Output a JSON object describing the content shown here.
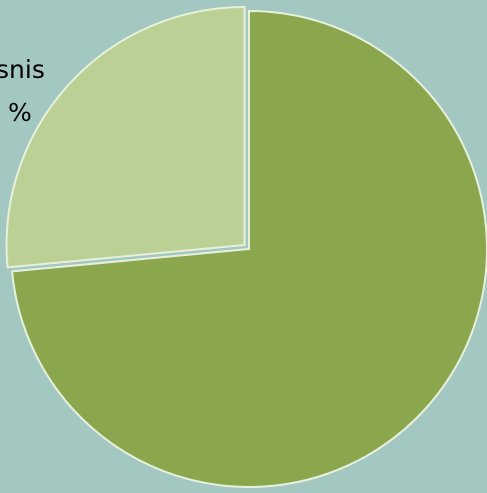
{
  "chart_data": {
    "type": "pie",
    "slices": [
      {
        "label": "",
        "value": 73.5,
        "color": "#8aa74e"
      },
      {
        "label": "",
        "value": 26.5,
        "color": "#bad095"
      }
    ],
    "text_fragments": [
      "snis",
      "%"
    ]
  },
  "colors": {
    "background": "#a3c7c1",
    "slice_border": "#e8f0dc"
  }
}
